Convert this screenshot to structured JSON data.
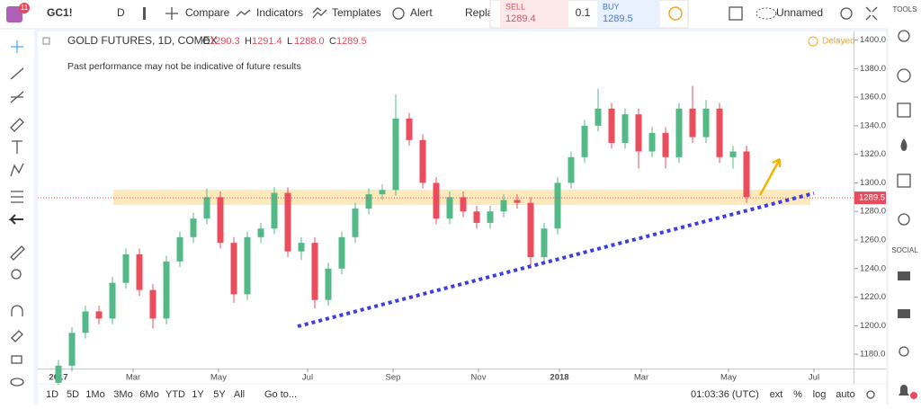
{
  "toolbar": {
    "symbol": "GC1!",
    "badge": "11",
    "interval": "D",
    "compare": "Compare",
    "indicators": "Indicators",
    "templates": "Templates",
    "alert": "Alert",
    "replay": "Repla",
    "sell_label": "SELL",
    "sell_price": "1289.4",
    "spread": "0.1",
    "buy_label": "BUY",
    "buy_price": "1289.5",
    "layout_name": "Unnamed"
  },
  "legend": {
    "title": "GOLD FUTURES, 1D, COMEX",
    "ohlc": [
      {
        "label": "O",
        "value": "1290.3"
      },
      {
        "label": "H",
        "value": "1291.4"
      },
      {
        "label": "L",
        "value": "1288.0"
      },
      {
        "label": "C",
        "value": "1289.5"
      }
    ]
  },
  "disclaimer": "Past performance may not be indicative of future results",
  "status": "Delayed",
  "chart": {
    "type": "candlestick",
    "up_color": "#53b987",
    "down_color": "#eb4d5c",
    "candles": [
      [
        1160,
        1176,
        1156,
        1172
      ],
      [
        1172,
        1199,
        1168,
        1195
      ],
      [
        1195,
        1214,
        1191,
        1210
      ],
      [
        1210,
        1214,
        1201,
        1205
      ],
      [
        1205,
        1234,
        1201,
        1230
      ],
      [
        1230,
        1254,
        1226,
        1250
      ],
      [
        1250,
        1254,
        1221,
        1225
      ],
      [
        1225,
        1229,
        1198,
        1205
      ],
      [
        1205,
        1249,
        1201,
        1245
      ],
      [
        1245,
        1266,
        1241,
        1262
      ],
      [
        1262,
        1279,
        1258,
        1275
      ],
      [
        1275,
        1296,
        1271,
        1290
      ],
      [
        1290,
        1294,
        1254,
        1258
      ],
      [
        1258,
        1262,
        1216,
        1222
      ],
      [
        1222,
        1266,
        1218,
        1262
      ],
      [
        1262,
        1272,
        1258,
        1268
      ],
      [
        1268,
        1297,
        1264,
        1293
      ],
      [
        1293,
        1297,
        1248,
        1252
      ],
      [
        1252,
        1262,
        1246,
        1258
      ],
      [
        1258,
        1262,
        1212,
        1218
      ],
      [
        1218,
        1244,
        1214,
        1240
      ],
      [
        1240,
        1266,
        1236,
        1262
      ],
      [
        1262,
        1286,
        1258,
        1282
      ],
      [
        1282,
        1296,
        1278,
        1292
      ],
      [
        1292,
        1299,
        1288,
        1295
      ],
      [
        1295,
        1362,
        1291,
        1345
      ],
      [
        1345,
        1349,
        1326,
        1330
      ],
      [
        1330,
        1334,
        1296,
        1300
      ],
      [
        1300,
        1304,
        1271,
        1275
      ],
      [
        1275,
        1294,
        1271,
        1290
      ],
      [
        1290,
        1294,
        1276,
        1280
      ],
      [
        1280,
        1284,
        1268,
        1272
      ],
      [
        1272,
        1284,
        1268,
        1280
      ],
      [
        1280,
        1292,
        1276,
        1288
      ],
      [
        1288,
        1292,
        1282,
        1286
      ],
      [
        1286,
        1290,
        1240,
        1248
      ],
      [
        1248,
        1272,
        1244,
        1268
      ],
      [
        1268,
        1304,
        1264,
        1300
      ],
      [
        1300,
        1322,
        1296,
        1318
      ],
      [
        1318,
        1344,
        1314,
        1340
      ],
      [
        1340,
        1366,
        1336,
        1352
      ],
      [
        1352,
        1356,
        1324,
        1328
      ],
      [
        1328,
        1352,
        1324,
        1348
      ],
      [
        1348,
        1352,
        1310,
        1322
      ],
      [
        1322,
        1339,
        1318,
        1335
      ],
      [
        1335,
        1339,
        1310,
        1318
      ],
      [
        1318,
        1356,
        1314,
        1352
      ],
      [
        1352,
        1368,
        1328,
        1332
      ],
      [
        1332,
        1358,
        1328,
        1352
      ],
      [
        1352,
        1356,
        1314,
        1318
      ],
      [
        1318,
        1326,
        1310,
        1322
      ],
      [
        1322,
        1326,
        1286,
        1290
      ]
    ],
    "ylim": [
      1170,
      1406
    ],
    "yticks": [
      {
        "value": 1180,
        "label": "1180.0"
      },
      {
        "value": 1200,
        "label": "1200.0"
      },
      {
        "value": 1220,
        "label": "1220.0"
      },
      {
        "value": 1240,
        "label": "1240.0"
      },
      {
        "value": 1260,
        "label": "1260.0"
      },
      {
        "value": 1280,
        "label": "1280.0"
      },
      {
        "value": 1300,
        "label": "1300.0"
      },
      {
        "value": 1320,
        "label": "1320.0"
      },
      {
        "value": 1340,
        "label": "1340.0"
      },
      {
        "value": 1360,
        "label": "1360.0"
      },
      {
        "value": 1380,
        "label": "1380.0"
      },
      {
        "value": 1400,
        "label": "1400.0"
      }
    ],
    "x_labels": [
      "2017",
      "Mar",
      "May",
      "Jul",
      "Sep",
      "Nov",
      "2018",
      "Mar",
      "May",
      "Jul"
    ],
    "last_price": {
      "value": 1289.5,
      "label": "1289.5"
    }
  },
  "bottom_bar": {
    "ranges": [
      "1D",
      "5D",
      "1Mo",
      "3Mo",
      "6Mo",
      "YTD",
      "1Y",
      "5Y",
      "All"
    ],
    "goto": "Go to...",
    "clock": "01:03:36 (UTC)",
    "options": [
      "ext",
      "%",
      "log",
      "auto"
    ]
  },
  "side_panel": {
    "tools": "TOOLS",
    "social": "SOCIAL"
  }
}
